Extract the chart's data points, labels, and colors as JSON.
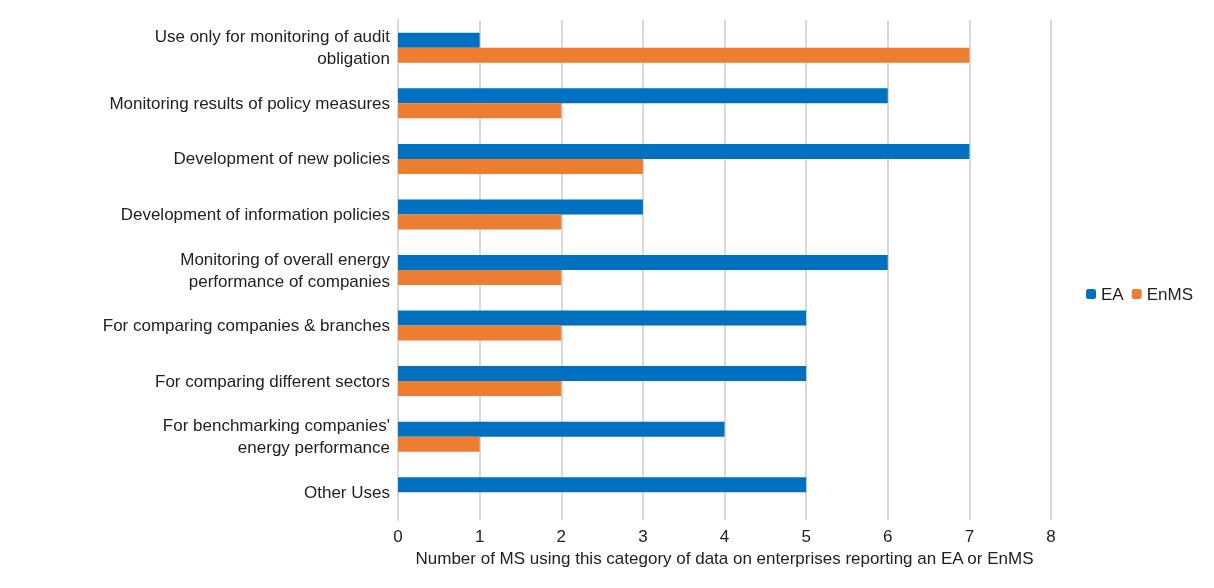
{
  "chart_data": {
    "type": "bar",
    "orientation": "horizontal",
    "xlabel": "Number of MS using this category of data on enterprises reporting an EA or EnMS",
    "categories": [
      "Use only for monitoring of audit\nobligation",
      "Monitoring results of policy measures",
      "Development of new policies",
      "Development of information policies",
      "Monitoring of overall energy\nperformance of companies",
      "For comparing companies & branches",
      "For comparing different sectors",
      "For benchmarking companies'\nenergy performance",
      "Other Uses"
    ],
    "series": [
      {
        "name": "EA",
        "color": "#0070c0",
        "values": [
          1,
          6,
          7,
          3,
          6,
          5,
          5,
          4,
          5
        ]
      },
      {
        "name": "EnMS",
        "color": "#ed7d31",
        "values": [
          7,
          2,
          3,
          2,
          2,
          2,
          2,
          1,
          0
        ]
      }
    ],
    "xlim": [
      0,
      8
    ],
    "xticks": [
      0,
      1,
      2,
      3,
      4,
      5,
      6,
      7,
      8
    ],
    "grid": "x",
    "legend": "right"
  }
}
